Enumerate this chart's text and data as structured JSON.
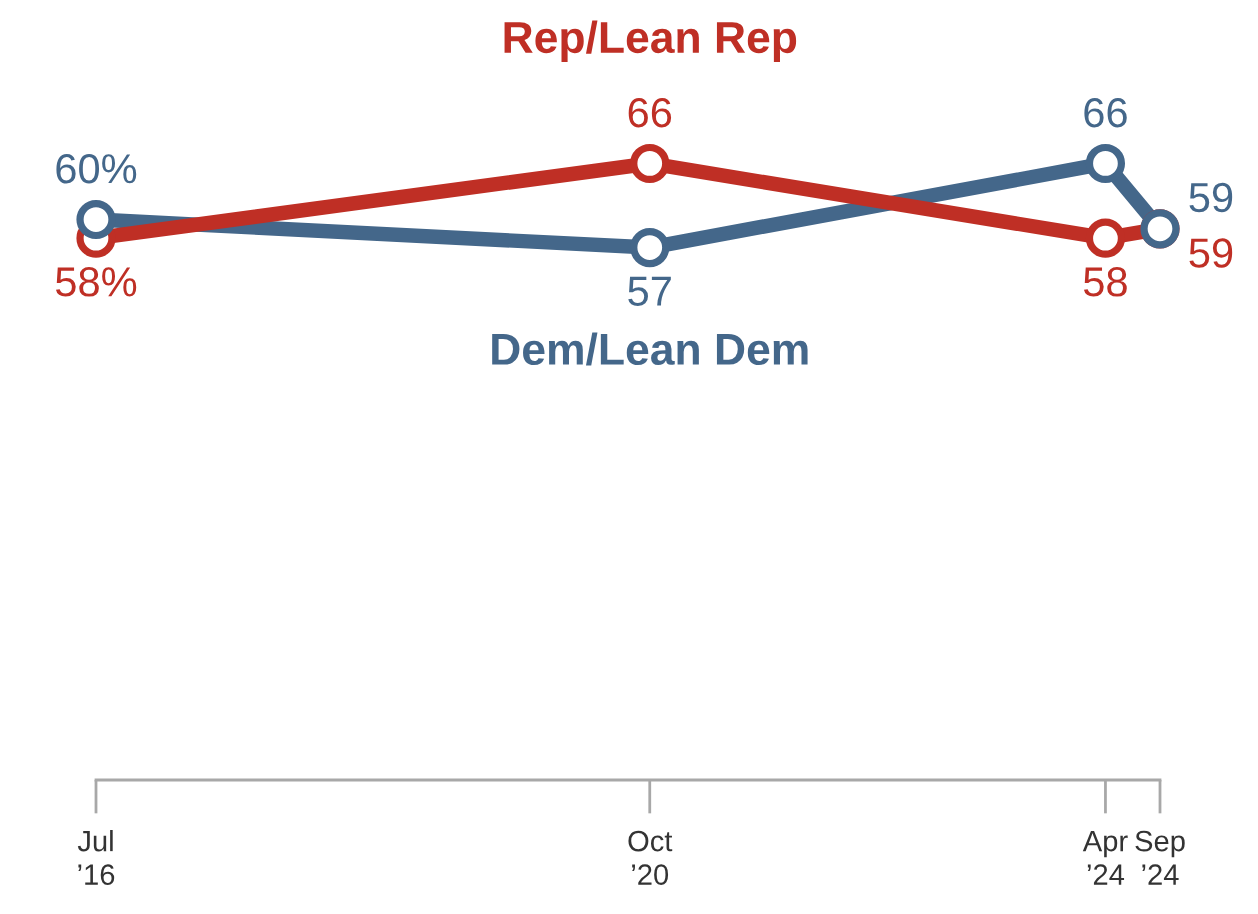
{
  "chart_data": {
    "type": "line",
    "x": [
      "2016-07",
      "2020-10",
      "2024-04",
      "2024-09"
    ],
    "series": [
      {
        "name": "Dem/Lean Dem",
        "color": "#44678a",
        "values": [
          60,
          57,
          66,
          59
        ],
        "value_labels": [
          "60%",
          "57",
          "66",
          "59"
        ]
      },
      {
        "name": "Rep/Lean Rep",
        "color": "#bf2f25",
        "values": [
          58,
          66,
          58,
          59
        ],
        "value_labels": [
          "58%",
          "66",
          "58",
          "59"
        ]
      }
    ],
    "xlim": [
      "2016-07",
      "2024-09"
    ],
    "xticks": [
      {
        "value": "2016-07",
        "label": "Jul\n’16"
      },
      {
        "value": "2020-10",
        "label": "Oct\n’20"
      },
      {
        "value": "2024-04",
        "label": "Apr\n’24"
      },
      {
        "value": "2024-09",
        "label": "Sep\n’24"
      }
    ],
    "tick_labels": "x",
    "marker": "circle",
    "line_style": "solid"
  }
}
